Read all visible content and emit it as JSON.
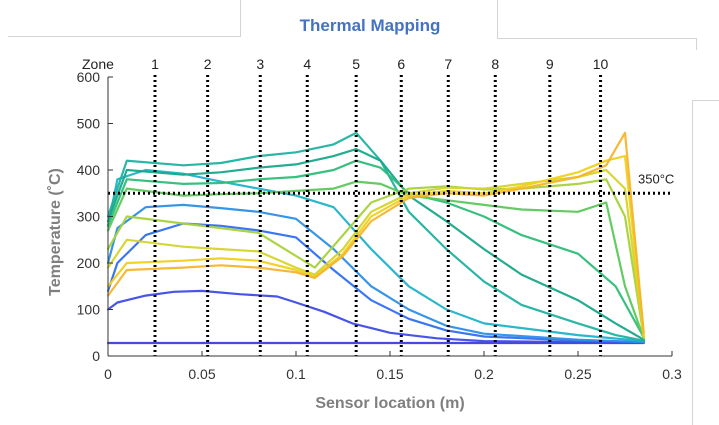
{
  "page": {
    "title": "Thermal Mapping"
  },
  "chart_data": {
    "type": "line",
    "xlabel": "Sensor location (m)",
    "ylabel": "Temperature (˚C)",
    "xlim": [
      0,
      0.3
    ],
    "ylim": [
      0,
      600
    ],
    "xticks": [
      0,
      0.05,
      0.1,
      0.15,
      0.2,
      0.25,
      0.3
    ],
    "xtick_labels": [
      "0",
      "0.05",
      "0.1",
      "0.15",
      "0.2",
      "0.25",
      "0.3"
    ],
    "yticks": [
      0,
      100,
      200,
      300,
      400,
      500,
      600
    ],
    "ytick_labels": [
      "0",
      "100",
      "200",
      "300",
      "400",
      "500",
      "600"
    ],
    "grid": false,
    "zone_label": "Zone",
    "zones": [
      {
        "label": "1",
        "x": 0.025
      },
      {
        "label": "2",
        "x": 0.053
      },
      {
        "label": "3",
        "x": 0.081
      },
      {
        "label": "4",
        "x": 0.106
      },
      {
        "label": "5",
        "x": 0.132
      },
      {
        "label": "6",
        "x": 0.156
      },
      {
        "label": "7",
        "x": 0.181
      },
      {
        "label": "8",
        "x": 0.206
      },
      {
        "label": "9",
        "x": 0.235
      },
      {
        "label": "10",
        "x": 0.262
      }
    ],
    "reference_line": {
      "value": 350,
      "label": "350°C",
      "color": "#000000"
    },
    "colors": {
      "early": "#3b3fe0",
      "mid": "#1fb2a0",
      "late": "#f5e21e",
      "axis": "#333333"
    },
    "series": [
      {
        "color": "#3b3fe0",
        "x": [
          0,
          0.02,
          0.05,
          0.1,
          0.15,
          0.2,
          0.25,
          0.285
        ],
        "y": [
          28,
          28,
          28,
          28,
          28,
          28,
          28,
          28
        ]
      },
      {
        "color": "#3d4be6",
        "x": [
          0,
          0.005,
          0.02,
          0.035,
          0.05,
          0.07,
          0.09,
          0.1,
          0.115,
          0.13,
          0.15,
          0.175,
          0.2,
          0.25,
          0.285
        ],
        "y": [
          100,
          115,
          130,
          138,
          140,
          133,
          128,
          115,
          95,
          70,
          50,
          38,
          32,
          30,
          30
        ]
      },
      {
        "color": "#2f6ff0",
        "x": [
          0,
          0.005,
          0.02,
          0.04,
          0.06,
          0.08,
          0.1,
          0.12,
          0.14,
          0.16,
          0.18,
          0.2,
          0.25,
          0.285
        ],
        "y": [
          140,
          200,
          260,
          285,
          280,
          270,
          255,
          185,
          120,
          80,
          55,
          42,
          33,
          30
        ]
      },
      {
        "color": "#2b8fe6",
        "x": [
          0,
          0.005,
          0.02,
          0.04,
          0.06,
          0.08,
          0.1,
          0.12,
          0.14,
          0.16,
          0.18,
          0.2,
          0.25,
          0.285
        ],
        "y": [
          200,
          275,
          320,
          325,
          318,
          310,
          295,
          230,
          150,
          100,
          65,
          48,
          35,
          30
        ]
      },
      {
        "color": "#1fb2c8",
        "x": [
          0,
          0.005,
          0.02,
          0.04,
          0.06,
          0.08,
          0.1,
          0.12,
          0.14,
          0.16,
          0.18,
          0.2,
          0.25,
          0.285
        ],
        "y": [
          280,
          380,
          400,
          392,
          375,
          360,
          345,
          320,
          230,
          150,
          100,
          70,
          45,
          32
        ]
      },
      {
        "color": "#1fb2a0",
        "x": [
          0,
          0.01,
          0.04,
          0.06,
          0.08,
          0.1,
          0.12,
          0.132,
          0.145,
          0.16,
          0.18,
          0.2,
          0.22,
          0.25,
          0.27,
          0.285
        ],
        "y": [
          300,
          420,
          410,
          415,
          430,
          438,
          455,
          480,
          420,
          310,
          230,
          160,
          110,
          70,
          45,
          33
        ]
      },
      {
        "color": "#17a88a",
        "x": [
          0,
          0.01,
          0.04,
          0.06,
          0.08,
          0.1,
          0.12,
          0.132,
          0.145,
          0.16,
          0.18,
          0.2,
          0.22,
          0.25,
          0.27,
          0.285
        ],
        "y": [
          290,
          400,
          390,
          395,
          405,
          412,
          430,
          445,
          420,
          345,
          290,
          230,
          175,
          120,
          70,
          35
        ]
      },
      {
        "color": "#2dbd78",
        "x": [
          0,
          0.01,
          0.04,
          0.06,
          0.08,
          0.1,
          0.12,
          0.132,
          0.145,
          0.16,
          0.18,
          0.2,
          0.22,
          0.25,
          0.27,
          0.285
        ],
        "y": [
          280,
          380,
          370,
          372,
          380,
          385,
          400,
          420,
          405,
          350,
          330,
          300,
          260,
          220,
          150,
          40
        ]
      },
      {
        "color": "#5cc85a",
        "x": [
          0,
          0.01,
          0.04,
          0.06,
          0.08,
          0.1,
          0.12,
          0.132,
          0.145,
          0.16,
          0.18,
          0.2,
          0.22,
          0.25,
          0.265,
          0.275,
          0.285
        ],
        "y": [
          270,
          360,
          345,
          348,
          350,
          355,
          360,
          375,
          370,
          345,
          335,
          325,
          315,
          310,
          330,
          150,
          38
        ]
      },
      {
        "color": "#a6d23a",
        "x": [
          0,
          0.01,
          0.04,
          0.06,
          0.08,
          0.1,
          0.11,
          0.125,
          0.14,
          0.16,
          0.18,
          0.2,
          0.22,
          0.25,
          0.265,
          0.275,
          0.285
        ],
        "y": [
          230,
          300,
          285,
          275,
          265,
          215,
          190,
          260,
          330,
          360,
          365,
          358,
          360,
          370,
          380,
          300,
          40
        ]
      },
      {
        "color": "#d4d42a",
        "x": [
          0,
          0.01,
          0.04,
          0.06,
          0.08,
          0.1,
          0.11,
          0.125,
          0.14,
          0.16,
          0.18,
          0.2,
          0.22,
          0.25,
          0.265,
          0.275,
          0.285
        ],
        "y": [
          190,
          250,
          235,
          230,
          225,
          190,
          175,
          230,
          310,
          350,
          362,
          360,
          370,
          385,
          400,
          360,
          40
        ]
      },
      {
        "color": "#f0d01e",
        "x": [
          0,
          0.01,
          0.04,
          0.06,
          0.08,
          0.1,
          0.11,
          0.125,
          0.14,
          0.16,
          0.18,
          0.2,
          0.22,
          0.25,
          0.265,
          0.275,
          0.285
        ],
        "y": [
          150,
          200,
          205,
          210,
          205,
          185,
          170,
          220,
          300,
          345,
          355,
          350,
          365,
          395,
          420,
          430,
          45
        ]
      },
      {
        "color": "#f5b42a",
        "x": [
          0,
          0.01,
          0.04,
          0.06,
          0.08,
          0.1,
          0.11,
          0.125,
          0.14,
          0.16,
          0.18,
          0.2,
          0.22,
          0.25,
          0.265,
          0.275,
          0.285
        ],
        "y": [
          130,
          185,
          190,
          195,
          190,
          180,
          168,
          215,
          290,
          340,
          350,
          345,
          360,
          385,
          410,
          480,
          50
        ]
      }
    ]
  }
}
